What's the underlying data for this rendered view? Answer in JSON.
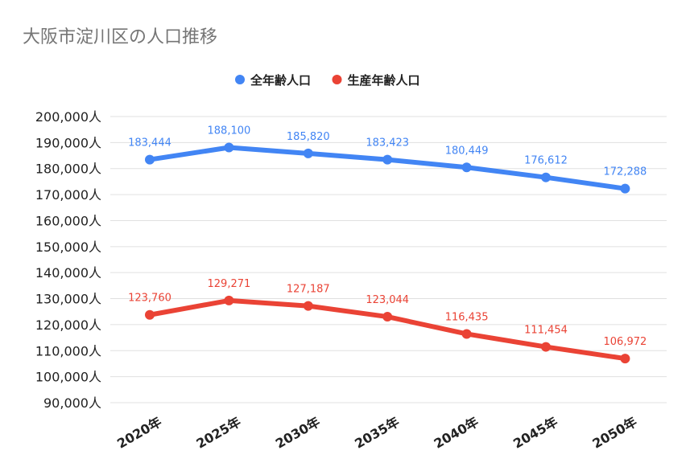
{
  "chart_data": {
    "type": "line",
    "title": "大阪市淀川区の人口推移",
    "categories": [
      "2020年",
      "2025年",
      "2030年",
      "2035年",
      "2040年",
      "2045年",
      "2050年"
    ],
    "series": [
      {
        "name": "全年齢人口",
        "color": "#4285f4",
        "values": [
          183444,
          188100,
          185820,
          183423,
          180449,
          176612,
          172288
        ],
        "labels": [
          "183,444",
          "188,100",
          "185,820",
          "183,423",
          "180,449",
          "176,612",
          "172,288"
        ]
      },
      {
        "name": "生産年齢人口",
        "color": "#ea4335",
        "values": [
          123760,
          129271,
          127187,
          123044,
          116435,
          111454,
          106972
        ],
        "labels": [
          "123,760",
          "129,271",
          "127,187",
          "123,044",
          "116,435",
          "111,454",
          "106,972"
        ]
      }
    ],
    "ylim": [
      90000,
      200000
    ],
    "yticks": [
      200000,
      190000,
      180000,
      170000,
      160000,
      150000,
      140000,
      130000,
      120000,
      110000,
      100000,
      90000
    ],
    "ytick_labels": [
      "200,000人",
      "190,000人",
      "180,000人",
      "170,000人",
      "160,000人",
      "150,000人",
      "140,000人",
      "130,000人",
      "120,000人",
      "110,000人",
      "100,000人",
      "90,000人"
    ],
    "xlabel": "",
    "ylabel": "",
    "grid": true,
    "legend": "top-center",
    "gridline_color": "#e0e0e0",
    "title_color": "#757575"
  }
}
